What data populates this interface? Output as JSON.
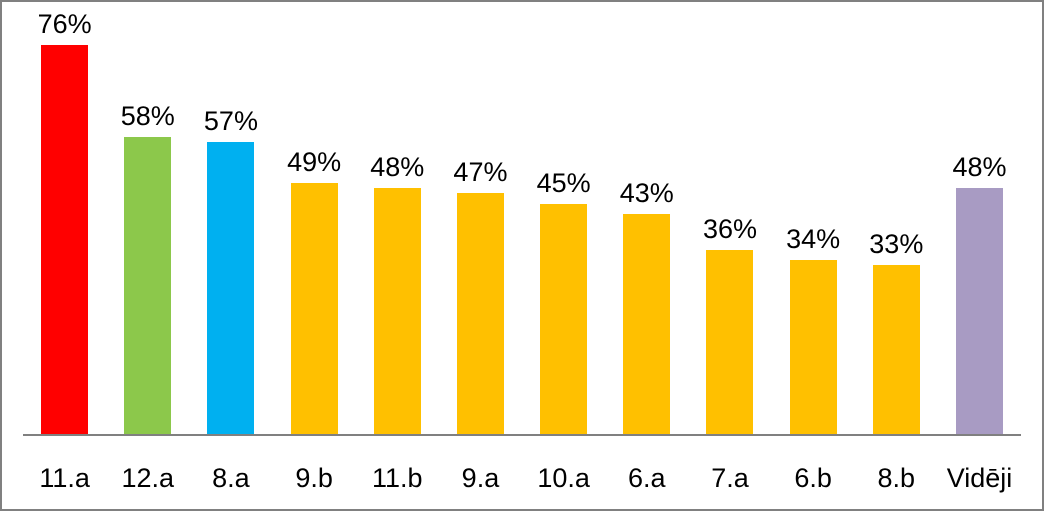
{
  "chart_data": {
    "type": "bar",
    "categories": [
      "11.a",
      "12.a",
      "8.a",
      "9.b",
      "11.b",
      "9.a",
      "10.a",
      "6.a",
      "7.a",
      "6.b",
      "8.b",
      "Vidēji"
    ],
    "values": [
      76,
      58,
      57,
      49,
      48,
      47,
      45,
      43,
      36,
      34,
      33,
      48
    ],
    "value_labels": [
      "76%",
      "58%",
      "57%",
      "49%",
      "48%",
      "47%",
      "45%",
      "43%",
      "36%",
      "34%",
      "33%",
      "48%"
    ],
    "bar_colors": [
      "#FF0000",
      "#8CC84B",
      "#00B0F0",
      "#FFC000",
      "#FFC000",
      "#FFC000",
      "#FFC000",
      "#FFC000",
      "#FFC000",
      "#FFC000",
      "#FFC000",
      "#A89BC3"
    ],
    "title": "",
    "xlabel": "",
    "ylabel": "",
    "ylim": [
      0,
      80
    ],
    "grid": false,
    "legend": false,
    "data_labels": "outside-end",
    "colors": {
      "background": "#FFFFFF",
      "frame_border": "#808080",
      "axis_line": "#808080",
      "label_text": "#000000"
    }
  }
}
